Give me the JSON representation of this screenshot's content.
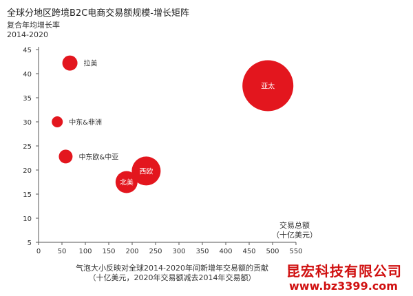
{
  "chart_data": {
    "type": "scatter",
    "title": "全球分地区跨境B2C电商交易额规模-增长矩阵",
    "ylabel_line1": "复合年均增长率",
    "ylabel_line2": "2014-2020",
    "xlabel_line1": "交易总额",
    "xlabel_line2": "（十亿美元）",
    "caption_line1": "气泡大小反映对全球2014-2020年间新增年交易额的贡献",
    "caption_line2": "（十亿美元，2020年交易额减去2014年交易额）",
    "xlim": [
      0,
      550
    ],
    "ylim": [
      5,
      45
    ],
    "xticks": [
      "0",
      "50",
      "100",
      "150",
      "200",
      "250",
      "300",
      "350",
      "400",
      "450",
      "500",
      "550"
    ],
    "yticks": [
      "5",
      "10",
      "15",
      "20",
      "25",
      "30",
      "35",
      "40",
      "45"
    ],
    "grid": false,
    "bubble_color": "#e3161e",
    "points": [
      {
        "label": "拉美",
        "x": 67,
        "y": 42.2,
        "size": 11,
        "label_pos": "right"
      },
      {
        "label": "中东&非洲",
        "x": 40,
        "y": 30,
        "size": 8,
        "label_pos": "right"
      },
      {
        "label": "中东欧&中亚",
        "x": 58,
        "y": 22.8,
        "size": 10,
        "label_pos": "right"
      },
      {
        "label": "北美",
        "x": 188,
        "y": 17.5,
        "size": 16,
        "label_pos": "inside"
      },
      {
        "label": "西欧",
        "x": 230,
        "y": 19.8,
        "size": 21,
        "label_pos": "inside"
      },
      {
        "label": "亚太",
        "x": 490,
        "y": 37.5,
        "size": 37,
        "label_pos": "inside"
      }
    ]
  },
  "watermark": {
    "company": "昆宏科技有限公司",
    "url": "www.bz3399.com"
  }
}
